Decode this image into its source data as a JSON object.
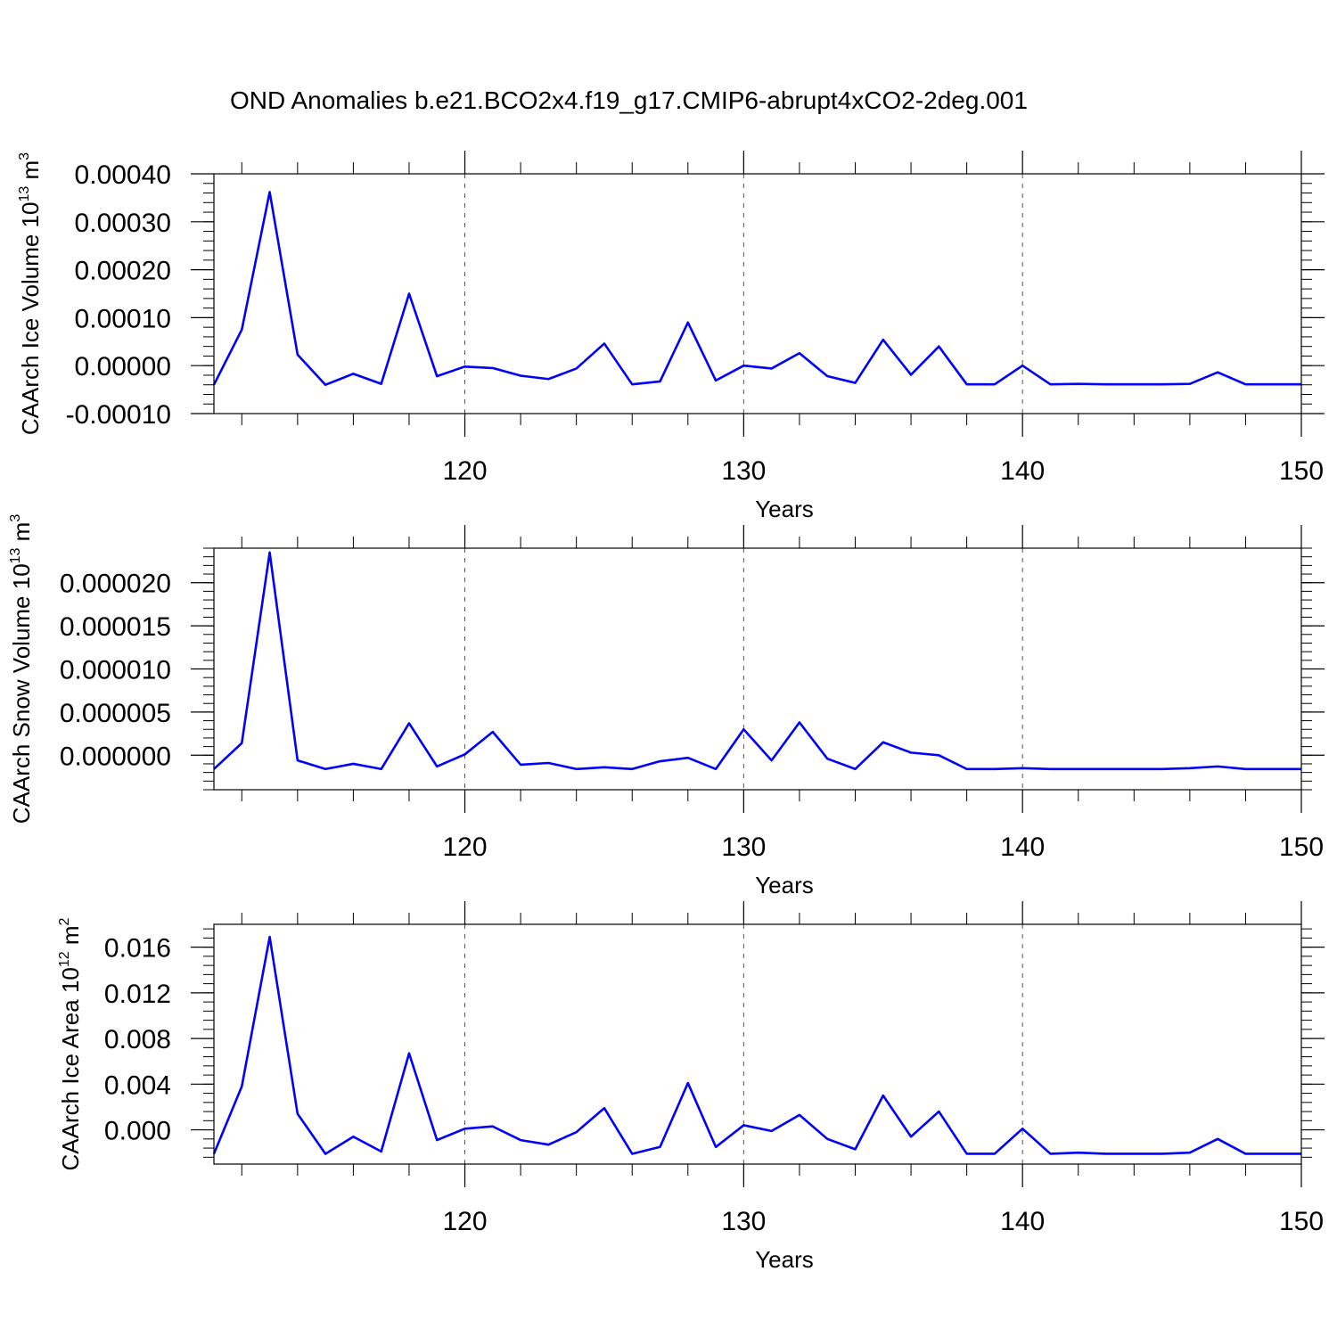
{
  "figure": {
    "title": "OND Anomalies b.e21.BCO2x4.f19_g17.CMIP6-abrupt4xCO2-2deg.001"
  },
  "chart_data": [
    {
      "type": "line",
      "title": "",
      "xlabel": "Years",
      "ylabel_main": "CAArch Ice Volume 10",
      "ylabel_exp": "13",
      "ylabel_unit": "m",
      "ylabel_unit_exp": "3",
      "xlim": [
        111,
        150
      ],
      "ylim": [
        -0.0001,
        0.0004
      ],
      "x_ticks": [
        120,
        130,
        140,
        150
      ],
      "x_tick_labels": [
        "120",
        "130",
        "140",
        "150"
      ],
      "y_ticks": [
        -0.0001,
        0.0,
        0.0001,
        0.0002,
        0.0003,
        0.0004
      ],
      "y_tick_labels": [
        "-0.00010",
        "0.00000",
        "0.00010",
        "0.00020",
        "0.00030",
        "0.00040"
      ],
      "y_minor_step": 2e-05,
      "grid": "vertical-dashed-at-major-x",
      "color": "#0000ff",
      "x": [
        111,
        112,
        113,
        114,
        115,
        116,
        117,
        118,
        119,
        120,
        121,
        122,
        123,
        124,
        125,
        126,
        127,
        128,
        129,
        130,
        131,
        132,
        133,
        134,
        135,
        136,
        137,
        138,
        139,
        140,
        141,
        142,
        143,
        144,
        145,
        146,
        147,
        148,
        149,
        150
      ],
      "values": [
        -4e-05,
        7.5e-05,
        0.000362,
        2.3e-05,
        -4e-05,
        -1.7e-05,
        -3.8e-05,
        0.00015,
        -2.2e-05,
        -2e-06,
        -5e-06,
        -2.1e-05,
        -2.8e-05,
        -6e-06,
        4.6e-05,
        -3.9e-05,
        -3.3e-05,
        9e-05,
        -3.1e-05,
        0.0,
        -6e-06,
        2.6e-05,
        -2.2e-05,
        -3.6e-05,
        5.4e-05,
        -1.9e-05,
        4e-05,
        -3.9e-05,
        -3.9e-05,
        0.0,
        -3.9e-05,
        -3.8e-05,
        -3.9e-05,
        -3.9e-05,
        -3.9e-05,
        -3.8e-05,
        -1.4e-05,
        -3.9e-05,
        -3.9e-05,
        -3.9e-05
      ]
    },
    {
      "type": "line",
      "title": "",
      "xlabel": "Years",
      "ylabel_main": "CAArch Snow Volume 10",
      "ylabel_exp": "13",
      "ylabel_unit": "m",
      "ylabel_unit_exp": "3",
      "xlim": [
        111,
        150
      ],
      "ylim": [
        -4e-06,
        2.4e-05
      ],
      "x_ticks": [
        120,
        130,
        140,
        150
      ],
      "x_tick_labels": [
        "120",
        "130",
        "140",
        "150"
      ],
      "y_ticks": [
        0.0,
        5e-06,
        1e-05,
        1.5e-05,
        2e-05
      ],
      "y_tick_labels": [
        "0.000000",
        "0.000005",
        "0.000010",
        "0.000015",
        "0.000020"
      ],
      "y_minor_step": 1e-06,
      "grid": "vertical-dashed-at-major-x",
      "color": "#0000ff",
      "x": [
        111,
        112,
        113,
        114,
        115,
        116,
        117,
        118,
        119,
        120,
        121,
        122,
        123,
        124,
        125,
        126,
        127,
        128,
        129,
        130,
        131,
        132,
        133,
        134,
        135,
        136,
        137,
        138,
        139,
        140,
        141,
        142,
        143,
        144,
        145,
        146,
        147,
        148,
        149,
        150
      ],
      "values": [
        -1.6e-06,
        1.4e-06,
        2.35e-05,
        -6e-07,
        -1.6e-06,
        -1e-06,
        -1.6e-06,
        3.7e-06,
        -1.3e-06,
        1e-07,
        2.7e-06,
        -1.1e-06,
        -9e-07,
        -1.6e-06,
        -1.4e-06,
        -1.6e-06,
        -7e-07,
        -3e-07,
        -1.6e-06,
        3e-06,
        -6e-07,
        3.8e-06,
        -4e-07,
        -1.6e-06,
        1.5e-06,
        3e-07,
        0.0,
        -1.6e-06,
        -1.6e-06,
        -1.5e-06,
        -1.6e-06,
        -1.6e-06,
        -1.6e-06,
        -1.6e-06,
        -1.6e-06,
        -1.5e-06,
        -1.3e-06,
        -1.6e-06,
        -1.6e-06,
        -1.6e-06
      ]
    },
    {
      "type": "line",
      "title": "",
      "xlabel": "Years",
      "ylabel_main": "CAArch Ice Area 10",
      "ylabel_exp": "12",
      "ylabel_unit": "m",
      "ylabel_unit_exp": "2",
      "xlim": [
        111,
        150
      ],
      "ylim": [
        -0.003,
        0.018
      ],
      "x_ticks": [
        120,
        130,
        140,
        150
      ],
      "x_tick_labels": [
        "120",
        "130",
        "140",
        "150"
      ],
      "y_ticks": [
        0.0,
        0.004,
        0.008,
        0.012,
        0.016
      ],
      "y_tick_labels": [
        "0.000",
        "0.004",
        "0.008",
        "0.012",
        "0.016"
      ],
      "y_minor_step": 0.0008,
      "grid": "vertical-dashed-at-major-x",
      "color": "#0000ff",
      "x": [
        111,
        112,
        113,
        114,
        115,
        116,
        117,
        118,
        119,
        120,
        121,
        122,
        123,
        124,
        125,
        126,
        127,
        128,
        129,
        130,
        131,
        132,
        133,
        134,
        135,
        136,
        137,
        138,
        139,
        140,
        141,
        142,
        143,
        144,
        145,
        146,
        147,
        148,
        149,
        150
      ],
      "values": [
        -0.0021,
        0.0038,
        0.0169,
        0.0014,
        -0.0021,
        -0.0006,
        -0.0019,
        0.0067,
        -0.0009,
        0.0001,
        0.0003,
        -0.0009,
        -0.0013,
        -0.0002,
        0.0019,
        -0.0021,
        -0.0015,
        0.0041,
        -0.0015,
        0.0004,
        -0.0001,
        0.0013,
        -0.0008,
        -0.0017,
        0.003,
        -0.0006,
        0.0016,
        -0.0021,
        -0.0021,
        0.0001,
        -0.0021,
        -0.002,
        -0.0021,
        -0.0021,
        -0.0021,
        -0.002,
        -0.0008,
        -0.0021,
        -0.0021,
        -0.0021
      ]
    }
  ]
}
